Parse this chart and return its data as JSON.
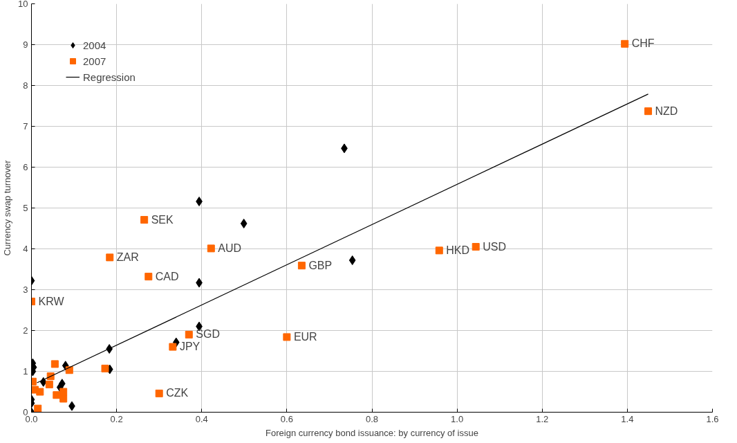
{
  "chart_data": {
    "type": "scatter",
    "xlabel": "Foreign currency bond issuance: by currency of issue",
    "ylabel": "Currency swap turnover",
    "xlim": [
      0,
      1.6
    ],
    "ylim": [
      0,
      10
    ],
    "xticks": [
      {
        "value": 0,
        "label": "0.0"
      },
      0.2,
      0.4,
      0.6,
      0.8,
      {
        "value": 1.0,
        "label": "1.0"
      },
      1.2,
      1.4,
      1.6
    ],
    "yticks": [
      0,
      1,
      2,
      3,
      4,
      5,
      6,
      7,
      8,
      9,
      10
    ],
    "grid": true,
    "legend": "top left",
    "series": [
      {
        "name": "2004",
        "marker": "diamond",
        "color": "#000000",
        "x": [
          0,
          0.394,
          0.499,
          0.735,
          0.754,
          0.394,
          0.394,
          0.34,
          0.183,
          0.184,
          0.003,
          0.005,
          0.003,
          0.028,
          0.08,
          0.072,
          0.067,
          0.095,
          0,
          0,
          0
        ],
        "values": [
          3.22,
          5.16,
          4.62,
          6.46,
          3.72,
          3.17,
          2.1,
          1.71,
          1.55,
          1.05,
          1.2,
          1.1,
          1.0,
          0.74,
          1.14,
          0.7,
          0.61,
          0.15,
          0.31,
          0.22,
          0
        ]
      },
      {
        "name": "2007",
        "marker": "square",
        "color": "#ff6600",
        "x": [
          1.394,
          1.449,
          0.265,
          0.184,
          0.275,
          0.422,
          0.635,
          0.958,
          1.044,
          0,
          0.332,
          0.37,
          0.6,
          0.3,
          0.173,
          0.055,
          0.089,
          0.003,
          0.045,
          0.042,
          0.008,
          0.02,
          0.059,
          0.075,
          0.075,
          0.015
        ],
        "values": [
          9.02,
          7.37,
          4.71,
          3.79,
          3.32,
          4.01,
          3.59,
          3.96,
          4.05,
          2.71,
          1.6,
          1.9,
          1.84,
          0.46,
          1.07,
          1.18,
          1.03,
          0.75,
          0.88,
          0.68,
          0.55,
          0.5,
          0.42,
          0.5,
          0.33,
          0.09
        ]
      },
      {
        "name": "Regression",
        "type": "line",
        "marker": "none",
        "color": "#000000",
        "x": [
          0.013,
          1.449
        ],
        "values": [
          0.72,
          7.79
        ]
      }
    ],
    "annotations": [
      {
        "text": "CHF",
        "x": 1.394,
        "y": 9.02
      },
      {
        "text": "NZD",
        "x": 1.449,
        "y": 7.37
      },
      {
        "text": "SEK",
        "x": 0.265,
        "y": 4.71
      },
      {
        "text": "ZAR",
        "x": 0.184,
        "y": 3.79
      },
      {
        "text": "CAD",
        "x": 0.275,
        "y": 3.32
      },
      {
        "text": "AUD",
        "x": 0.422,
        "y": 4.01
      },
      {
        "text": "GBP",
        "x": 0.635,
        "y": 3.59
      },
      {
        "text": "HKD",
        "x": 0.958,
        "y": 3.96
      },
      {
        "text": "USD",
        "x": 1.044,
        "y": 4.05
      },
      {
        "text": "KRW",
        "x": 0,
        "y": 2.71
      },
      {
        "text": "JPY",
        "x": 0.332,
        "y": 1.6
      },
      {
        "text": "SGD",
        "x": 0.37,
        "y": 1.9
      },
      {
        "text": "EUR",
        "x": 0.6,
        "y": 1.84
      },
      {
        "text": "CZK",
        "x": 0.3,
        "y": 0.46
      }
    ]
  }
}
